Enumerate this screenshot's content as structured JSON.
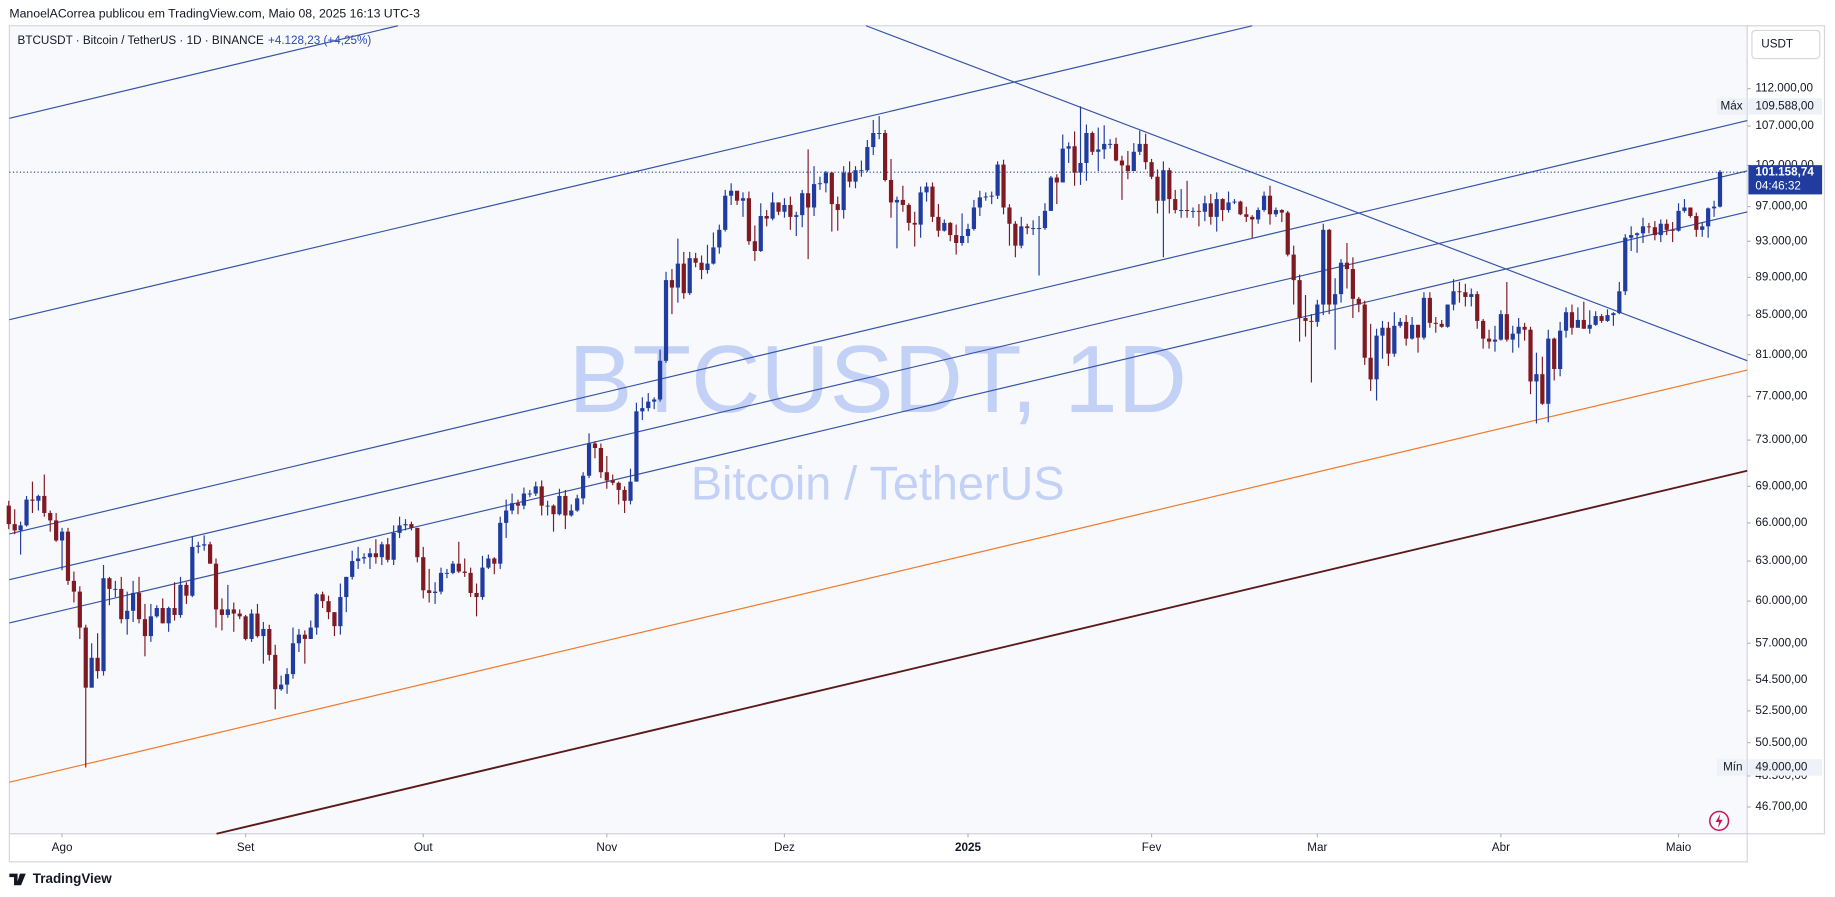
{
  "header": {
    "published": "ManoelACorrea publicou em TradingView.com, Maio 08, 2025 16:13 UTC-3",
    "symbol": "BTCUSDT · Bitcoin / TetherUS · 1D · BINANCE",
    "change": "+4.128,23 (+4,25%)",
    "currency": "USDT",
    "brand": "TradingView"
  },
  "chart_data": {
    "type": "candlestick",
    "watermark": "BTCUSDT, 1D",
    "watermark_sub": "Bitcoin / TetherUS",
    "up_color": "#1f3c9e",
    "down_color": "#7f1a22",
    "log_scale": true,
    "xlim": [
      0.1,
      293.6
    ],
    "ylim": [
      45200,
      120900
    ],
    "xticks": [
      {
        "value": 9,
        "label": "Ago"
      },
      {
        "value": 40,
        "label": "Set"
      },
      {
        "value": 70,
        "label": "Out"
      },
      {
        "value": 101,
        "label": "Nov"
      },
      {
        "value": 131,
        "label": "Dez"
      },
      {
        "value": 162,
        "label": "2025"
      },
      {
        "value": 193,
        "label": "Fev"
      },
      {
        "value": 221,
        "label": "Mar"
      },
      {
        "value": 252,
        "label": "Abr"
      },
      {
        "value": 282,
        "label": "Maio"
      }
    ],
    "yticks": [
      {
        "value": 112000,
        "label": "112.000,00"
      },
      {
        "value": 107000,
        "label": "107.000,00"
      },
      {
        "value": 102000,
        "label": "102.000,00"
      },
      {
        "value": 97000,
        "label": "97.000,00"
      },
      {
        "value": 93000,
        "label": "93.000,00"
      },
      {
        "value": 89000,
        "label": "89.000,00"
      },
      {
        "value": 85000,
        "label": "85.000,00"
      },
      {
        "value": 81000,
        "label": "81.000,00"
      },
      {
        "value": 77000,
        "label": "77.000,00"
      },
      {
        "value": 73000,
        "label": "73.000,00"
      },
      {
        "value": 69000,
        "label": "69.000,00"
      },
      {
        "value": 66000,
        "label": "66.000,00"
      },
      {
        "value": 63000,
        "label": "63.000,00"
      },
      {
        "value": 60000,
        "label": "60.000,00"
      },
      {
        "value": 57000,
        "label": "57.000,00"
      },
      {
        "value": 54500,
        "label": "54.500,00"
      },
      {
        "value": 52500,
        "label": "52.500,00"
      },
      {
        "value": 50500,
        "label": "50.500,00"
      },
      {
        "value": 48500,
        "label": "48.500,00"
      },
      {
        "value": 46700,
        "label": "46.700,00"
      }
    ],
    "max": {
      "name": "Máx",
      "value": 109588,
      "label": "109.588,00"
    },
    "min": {
      "name": "Mín",
      "value": 49000,
      "label": "49.000,00"
    },
    "last": {
      "value": 101158.74,
      "label": "101.158,74",
      "countdown": "04:46:32"
    },
    "open": [
      67400,
      65900,
      65400,
      65800,
      67900,
      67800,
      68200,
      66800,
      66200,
      64600,
      65300,
      61500,
      60700,
      58100,
      54000,
      56000,
      55100,
      61700,
      60900,
      60900,
      58700,
      59300,
      60600,
      58700,
      57500,
      58900,
      59500,
      58400,
      59500,
      59000,
      61200,
      60400,
      64100,
      64200,
      64300,
      62800,
      59400,
      59000,
      59400,
      59100,
      58900,
      57300,
      59100,
      57500,
      58000,
      56200,
      53900,
      54200,
      54900,
      57000,
      57600,
      57300,
      58100,
      60500,
      60000,
      59200,
      58200,
      60300,
      61800,
      63000,
      63200,
      63300,
      63600,
      63300,
      64300,
      63100,
      65200,
      65800,
      65900,
      65600,
      63300,
      60800,
      60600,
      60700,
      62100,
      62100,
      62800,
      62200,
      62100,
      60600,
      60300,
      62500,
      63200,
      62800,
      66000,
      67000,
      67600,
      67400,
      68400,
      68400,
      69000,
      67400,
      67400,
      66700,
      68200,
      66600,
      67000,
      68000,
      69900,
      72700,
      72300,
      70200,
      69500,
      69300,
      68700,
      67800,
      69400,
      75600,
      75900,
      76500,
      76700,
      80400,
      88700,
      87900,
      90500,
      87300,
      91100,
      90600,
      89800,
      90500,
      92300,
      94300,
      98300,
      98900,
      97700,
      98000,
      93000,
      91900,
      95900,
      95600,
      97500,
      96400,
      97200,
      95800,
      96000,
      98600,
      96900,
      99700,
      99800,
      101100,
      97300,
      96600,
      101100,
      100000,
      101400,
      101400,
      104300,
      106100,
      106100,
      100200,
      97500,
      97800,
      97200,
      95100,
      94900,
      98700,
      99400,
      95800,
      94200,
      95100,
      93700,
      92800,
      93600,
      94400,
      96900,
      98100,
      98200,
      98300,
      102100,
      96900,
      95000,
      92500,
      94700,
      94500,
      94500,
      94500,
      96500,
      100500,
      99900,
      104100,
      104400,
      101100,
      102300,
      106100,
      103700,
      104000,
      104700,
      104700,
      102600,
      102000,
      101300,
      103700,
      104700,
      102400,
      100600,
      97700,
      101400,
      97900,
      96600,
      96600,
      96500,
      96500,
      96400,
      97400,
      95800,
      97900,
      96600,
      97500,
      97600,
      96100,
      95800,
      95500,
      96600,
      98300,
      96100,
      96600,
      96300,
      91500,
      88700,
      84700,
      84400,
      84300,
      86100,
      94300,
      86100,
      87200,
      90600,
      89900,
      86700,
      86100,
      80700,
      78600,
      82900,
      83700,
      81100,
      83900,
      84300,
      82600,
      84000,
      82700,
      86800,
      84200,
      84100,
      83800,
      86100,
      87500,
      87400,
      86900,
      87200,
      84400,
      82600,
      82300,
      82500,
      85100,
      82500,
      83100,
      83800,
      83500,
      78400,
      79100,
      76300,
      82600,
      79600,
      83400,
      85300,
      83700,
      84500,
      83600,
      84000,
      84900,
      84400,
      85000,
      85200,
      87500,
      93400,
      93700,
      93900,
      94700,
      94600,
      93700,
      95000,
      94300,
      94200,
      96500,
      96900,
      95900,
      94300,
      94700,
      96800,
      97000
    ],
    "high": [
      67800,
      67100,
      66100,
      68200,
      69400,
      68300,
      70000,
      67000,
      66800,
      65600,
      65600,
      62200,
      61100,
      58300,
      57000,
      57700,
      62700,
      61800,
      61500,
      61800,
      60700,
      61500,
      61800,
      59800,
      59800,
      59700,
      60200,
      59600,
      61400,
      61800,
      61400,
      64900,
      64500,
      65000,
      64500,
      63200,
      60200,
      61200,
      59900,
      59400,
      59000,
      59400,
      59800,
      58500,
      58300,
      56900,
      54800,
      55300,
      58100,
      58000,
      57900,
      58600,
      60600,
      60700,
      60400,
      59200,
      61300,
      61800,
      63800,
      64100,
      63600,
      64000,
      64700,
      64500,
      64800,
      65800,
      66500,
      66300,
      66100,
      65600,
      64100,
      62400,
      61400,
      62500,
      62400,
      63000,
      64500,
      63200,
      62500,
      61300,
      63400,
      63500,
      63300,
      66500,
      67900,
      68400,
      67900,
      68900,
      68700,
      69400,
      69500,
      67800,
      67500,
      68800,
      68700,
      67500,
      68300,
      70200,
      73600,
      72900,
      72700,
      71600,
      70000,
      69400,
      69000,
      70500,
      76400,
      76900,
      77300,
      76900,
      81500,
      89600,
      89900,
      93300,
      91800,
      91800,
      91700,
      91400,
      92600,
      94000,
      94900,
      99000,
      99800,
      98800,
      98700,
      98800,
      94800,
      97400,
      96600,
      98700,
      97500,
      98000,
      98200,
      96400,
      99000,
      104000,
      101900,
      100600,
      101300,
      101200,
      98200,
      101900,
      102500,
      101900,
      102600,
      105200,
      107800,
      108300,
      106500,
      102800,
      98200,
      99500,
      97400,
      96400,
      99400,
      99900,
      99900,
      97300,
      95500,
      95200,
      94900,
      96200,
      95000,
      97800,
      98900,
      98700,
      98800,
      102500,
      102700,
      97300,
      95300,
      95800,
      95000,
      95400,
      95900,
      97400,
      100700,
      100900,
      105900,
      104900,
      106300,
      109600,
      107200,
      106300,
      106800,
      107100,
      105300,
      105500,
      103200,
      103800,
      104800,
      106400,
      106000,
      102800,
      101500,
      102500,
      101700,
      99000,
      99100,
      100100,
      96900,
      97300,
      98300,
      98500,
      98700,
      98000,
      98800,
      97900,
      97700,
      97000,
      96000,
      96900,
      98800,
      99500,
      96900,
      96700,
      96500,
      92500,
      89300,
      87100,
      85100,
      86600,
      95000,
      94400,
      88900,
      91000,
      92800,
      91200,
      86900,
      86500,
      84100,
      83600,
      84400,
      84300,
      85300,
      84700,
      85000,
      84800,
      84000,
      87400,
      87400,
      84800,
      84500,
      86100,
      88800,
      88500,
      88300,
      87800,
      87500,
      84600,
      83500,
      83900,
      85500,
      88500,
      83900,
      84700,
      84200,
      83800,
      81200,
      80800,
      83500,
      82700,
      84300,
      85800,
      86100,
      85800,
      86400,
      85500,
      85400,
      85100,
      85600,
      85300,
      88500,
      93800,
      94700,
      94000,
      95700,
      95100,
      95300,
      95500,
      95500,
      95200,
      97400,
      97900,
      96900,
      96300,
      95200,
      96900,
      97700,
      101400
    ],
    "low": [
      65500,
      65100,
      63500,
      65700,
      66800,
      67000,
      66500,
      65300,
      64500,
      62300,
      61200,
      59900,
      57300,
      49000,
      54000,
      54600,
      54800,
      59700,
      60300,
      58400,
      57600,
      58500,
      58400,
      56100,
      57100,
      58800,
      58400,
      57800,
      58600,
      58800,
      59800,
      60300,
      63600,
      63800,
      62800,
      58100,
      57900,
      58800,
      57800,
      58700,
      57200,
      57100,
      57400,
      55600,
      55800,
      52600,
      53800,
      53600,
      54600,
      56400,
      55600,
      57300,
      57600,
      59500,
      58700,
      57500,
      57600,
      59200,
      61600,
      62400,
      62800,
      62400,
      62800,
      62700,
      62900,
      62700,
      64800,
      65400,
      65400,
      62900,
      60200,
      59900,
      59800,
      60500,
      61700,
      62000,
      62100,
      61800,
      60300,
      58900,
      60100,
      62400,
      62000,
      62400,
      64800,
      66700,
      66700,
      67100,
      68100,
      68200,
      66600,
      66600,
      65300,
      66600,
      65500,
      66500,
      66900,
      67500,
      69700,
      71400,
      69700,
      68800,
      69100,
      67500,
      66800,
      67500,
      69400,
      74800,
      75600,
      75800,
      76500,
      80200,
      85100,
      86300,
      86700,
      87100,
      90100,
      88800,
      89400,
      90400,
      91600,
      94100,
      97200,
      97200,
      95800,
      92600,
      90800,
      91800,
      94700,
      95400,
      96000,
      95700,
      94300,
      93600,
      94600,
      91000,
      95900,
      99000,
      98700,
      94100,
      94200,
      95600,
      99300,
      99200,
      100600,
      101200,
      103300,
      105300,
      100000,
      95700,
      92200,
      96400,
      94200,
      92400,
      93400,
      97600,
      95200,
      93500,
      94100,
      93000,
      91500,
      92500,
      92800,
      94200,
      95900,
      97700,
      97300,
      97900,
      96100,
      92500,
      91200,
      92200,
      93800,
      93700,
      89200,
      94300,
      96500,
      97300,
      99900,
      102300,
      99500,
      99600,
      100100,
      103300,
      101300,
      102800,
      104100,
      102500,
      97800,
      100300,
      101300,
      103300,
      101500,
      100300,
      96200,
      91200,
      96200,
      96200,
      95700,
      95700,
      95700,
      94700,
      95300,
      94900,
      94100,
      95300,
      96300,
      97300,
      96000,
      95200,
      93400,
      95000,
      96400,
      94900,
      95800,
      95200,
      91300,
      86100,
      82300,
      82800,
      78300,
      83800,
      85000,
      85100,
      81500,
      86300,
      87800,
      84700,
      85300,
      80000,
      77500,
      76600,
      80600,
      79900,
      80800,
      83700,
      81900,
      82500,
      81200,
      82500,
      83700,
      83200,
      83700,
      83700,
      85500,
      86300,
      85900,
      85900,
      83600,
      81600,
      81600,
      81300,
      82400,
      82300,
      81200,
      81700,
      82400,
      77200,
      74500,
      76200,
      74600,
      78500,
      78900,
      82700,
      83000,
      83700,
      83600,
      83100,
      83900,
      84200,
      84300,
      83900,
      85100,
      87100,
      91900,
      91700,
      92800,
      93900,
      93100,
      92900,
      93700,
      92900,
      94100,
      96300,
      95700,
      93500,
      93500,
      93400,
      95800,
      96900
    ],
    "close": [
      65900,
      65400,
      65800,
      67900,
      67800,
      68200,
      66800,
      66200,
      64600,
      65300,
      61500,
      60700,
      58100,
      54000,
      56000,
      55100,
      61700,
      60900,
      60900,
      58700,
      59300,
      60600,
      58700,
      57500,
      58900,
      59500,
      58400,
      59500,
      59000,
      61200,
      60400,
      64100,
      64200,
      64300,
      62800,
      59400,
      59000,
      59400,
      59100,
      58900,
      57300,
      59100,
      57500,
      58000,
      56200,
      53900,
      54200,
      54900,
      57000,
      57600,
      57300,
      58100,
      60500,
      60000,
      59200,
      58200,
      60300,
      61800,
      63000,
      63200,
      63300,
      63600,
      63300,
      64300,
      63100,
      65200,
      65800,
      65900,
      65600,
      63300,
      60800,
      60600,
      60700,
      62100,
      62100,
      62800,
      62200,
      62100,
      60600,
      60300,
      62500,
      63200,
      62800,
      66000,
      67000,
      67600,
      67400,
      68400,
      68400,
      69000,
      67400,
      67400,
      66700,
      68200,
      66600,
      67000,
      68000,
      69900,
      72700,
      72300,
      70200,
      69500,
      69300,
      68700,
      67800,
      69400,
      75600,
      75900,
      76500,
      76700,
      80400,
      88700,
      87900,
      90500,
      87300,
      91100,
      90600,
      89800,
      90500,
      92300,
      94300,
      98300,
      98900,
      97700,
      98000,
      93000,
      91900,
      95900,
      95600,
      97500,
      96400,
      97200,
      95800,
      96000,
      98600,
      96900,
      99700,
      99800,
      101100,
      97300,
      96600,
      101100,
      100000,
      101400,
      101400,
      104300,
      106100,
      106100,
      100200,
      97500,
      97800,
      97200,
      95100,
      94900,
      98700,
      99400,
      95800,
      94200,
      95100,
      93700,
      92800,
      93600,
      94400,
      96900,
      98100,
      98200,
      98300,
      102100,
      96900,
      95000,
      92500,
      94700,
      94500,
      94500,
      94500,
      96500,
      100500,
      99900,
      104100,
      104400,
      101100,
      102300,
      106100,
      103700,
      104000,
      104700,
      104700,
      102600,
      102000,
      101300,
      103700,
      104700,
      102400,
      100600,
      97700,
      101400,
      97900,
      96600,
      96600,
      96500,
      96500,
      96400,
      97400,
      95800,
      97900,
      96600,
      97500,
      97600,
      96100,
      95800,
      95500,
      96600,
      98300,
      96100,
      96600,
      96300,
      91500,
      88700,
      84700,
      84400,
      84300,
      86100,
      94300,
      86100,
      87200,
      90600,
      89900,
      86700,
      86100,
      80700,
      78600,
      82900,
      83700,
      81100,
      83900,
      84300,
      82600,
      84000,
      82700,
      86800,
      84200,
      84100,
      83800,
      86100,
      87500,
      87400,
      86900,
      87200,
      84400,
      82600,
      82300,
      82500,
      85100,
      82500,
      83100,
      83800,
      83500,
      78400,
      79100,
      76300,
      82600,
      79600,
      83400,
      85300,
      83700,
      84500,
      83600,
      84000,
      84900,
      84400,
      85000,
      85200,
      87500,
      93400,
      93700,
      93900,
      94700,
      94600,
      93700,
      95000,
      94300,
      94200,
      96500,
      96900,
      95900,
      94300,
      94700,
      96800,
      97000,
      101200
    ]
  }
}
